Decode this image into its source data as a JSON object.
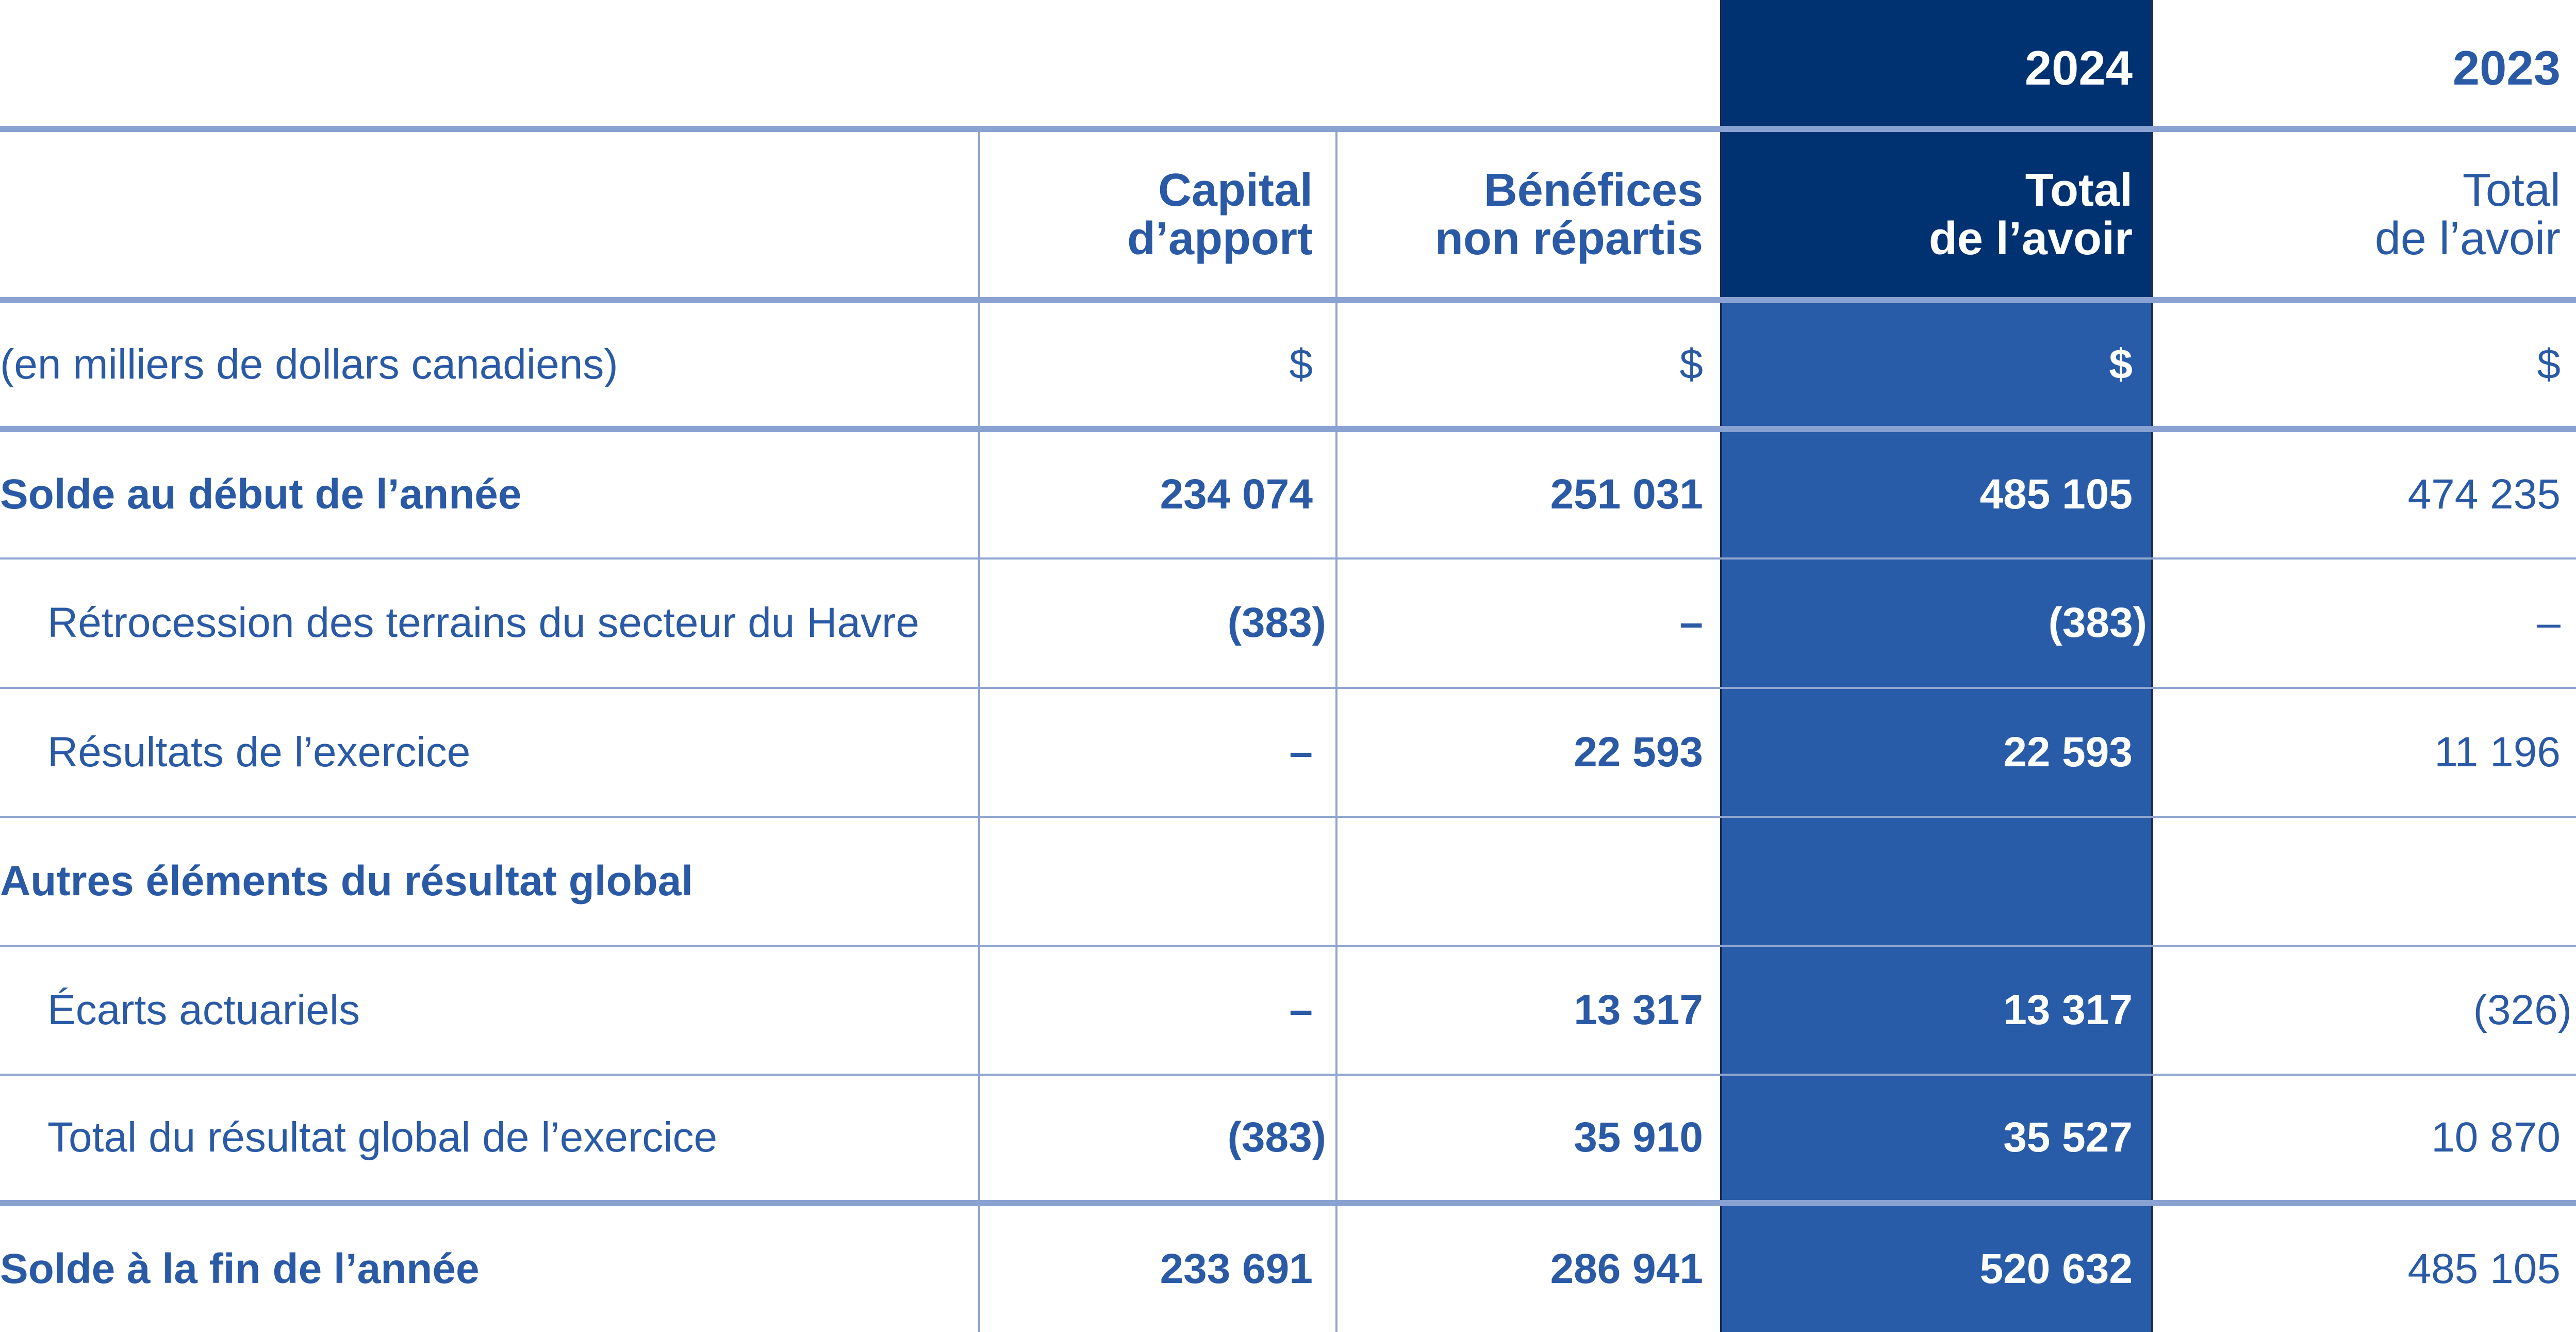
{
  "colors": {
    "text_blue": "#2a5aa5",
    "highlight_dark": "#003272",
    "highlight_mid": "#295ca8",
    "rule": "#8aa2d2"
  },
  "years": {
    "current": "2024",
    "previous": "2023"
  },
  "headers": {
    "capital": [
      "Capital",
      "d’apport"
    ],
    "benefices": [
      "Bénéfices",
      "non répartis"
    ],
    "total_current": [
      "Total",
      "de l’avoir"
    ],
    "total_previous": [
      "Total",
      "de l’avoir"
    ]
  },
  "units_row": {
    "label": "(en milliers de dollars canadiens)",
    "capital": "$",
    "benefices": "$",
    "total": "$",
    "previous": "$"
  },
  "rows": [
    {
      "label": "Solde au début de l’année",
      "capital": "234 074",
      "benefices": "251 031",
      "total": "485 105",
      "previous": "474 235"
    },
    {
      "label": "Rétrocession des terrains du secteur du Havre",
      "capital": "(383)",
      "benefices": "–",
      "total": "(383)",
      "previous": "–"
    },
    {
      "label": "Résultats de l’exercice",
      "capital": "–",
      "benefices": "22 593",
      "total": "22 593",
      "previous": "11 196"
    },
    {
      "label": "Autres éléments du résultat global",
      "capital": "",
      "benefices": "",
      "total": "",
      "previous": ""
    },
    {
      "label": "Écarts actuariels",
      "capital": "–",
      "benefices": "13 317",
      "total": "13 317",
      "previous": "(326)"
    },
    {
      "label": "Total du résultat global de l’exercice",
      "capital": "(383)",
      "benefices": "35 910",
      "total": "35 527",
      "previous": "10 870"
    },
    {
      "label": "Solde à la fin de l’année",
      "capital": "233 691",
      "benefices": "286 941",
      "total": "520 632",
      "previous": "485 105"
    }
  ]
}
